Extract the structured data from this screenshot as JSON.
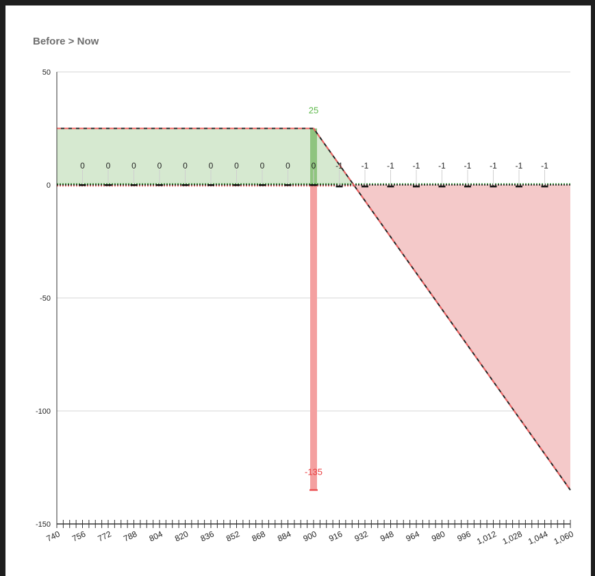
{
  "title": "Before > Now",
  "chart_data": {
    "type": "area",
    "title": "Before > Now",
    "xlabel": "",
    "ylabel": "",
    "xlim": [
      740,
      1060
    ],
    "ylim": [
      -150,
      50
    ],
    "y_ticks": [
      50,
      0,
      -50,
      -100,
      -150
    ],
    "x_tick_labels": [
      "740",
      "756",
      "772",
      "788",
      "804",
      "820",
      "836",
      "852",
      "868",
      "884",
      "900",
      "916",
      "932",
      "948",
      "964",
      "980",
      "996",
      "1,012",
      "1,028",
      "1,044",
      "1,060"
    ],
    "x_tick_values": [
      740,
      756,
      772,
      788,
      804,
      820,
      836,
      852,
      868,
      884,
      900,
      916,
      932,
      948,
      964,
      980,
      996,
      1012,
      1028,
      1044,
      1060
    ],
    "grid": true,
    "payoff_curve": {
      "x": [
        740,
        900,
        1060
      ],
      "y": [
        25,
        25,
        -135
      ]
    },
    "now_curve": {
      "x": [
        740,
        1060
      ],
      "y": [
        0,
        0
      ]
    },
    "vertical_marker": {
      "x": 900,
      "top_value": 25,
      "top_label": "25",
      "bottom_value": -135,
      "bottom_label": "-135"
    },
    "point_labels": {
      "x": [
        756,
        772,
        788,
        804,
        820,
        836,
        852,
        868,
        884,
        900,
        916,
        932,
        948,
        964,
        980,
        996,
        1012,
        1028,
        1044
      ],
      "values": [
        0,
        0,
        0,
        0,
        0,
        0,
        0,
        0,
        0,
        0,
        -1,
        -1,
        -1,
        -1,
        -1,
        -1,
        -1,
        -1,
        -1
      ],
      "labels": [
        "0",
        "0",
        "0",
        "0",
        "0",
        "0",
        "0",
        "0",
        "0",
        "0",
        "-1",
        "-1",
        "-1",
        "-1",
        "-1",
        "-1",
        "-1",
        "-1",
        "-1"
      ]
    },
    "colors": {
      "profit_fill": "#d6e9d0",
      "loss_fill": "#f4c9c9",
      "marker_green": "#8fc47f",
      "marker_red": "#f4a0a0",
      "label_green": "#5cb84a",
      "label_red": "#e8393b"
    }
  }
}
